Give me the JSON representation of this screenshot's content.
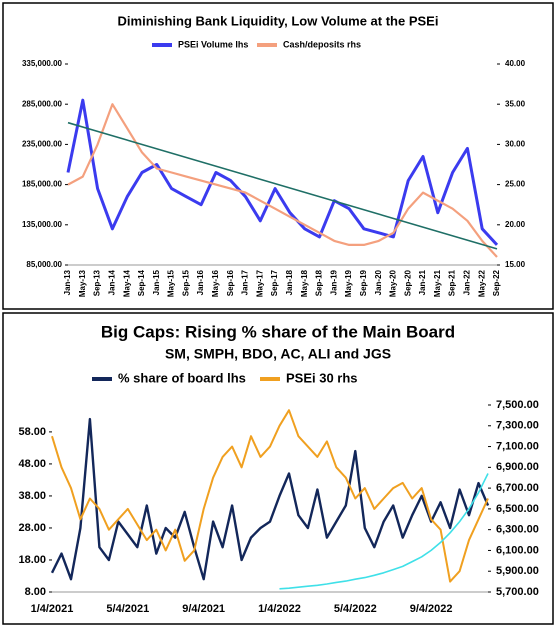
{
  "chart_data": [
    {
      "type": "line",
      "title": "Diminishing Bank Liquidity, Low Volume at the PSEi",
      "categories": [
        "Jan-13",
        "May-13",
        "Sep-13",
        "Jan-14",
        "May-14",
        "Sep-14",
        "Jan-15",
        "May-15",
        "Sep-15",
        "Jan-16",
        "May-16",
        "Sep-16",
        "Jan-17",
        "May-17",
        "Sep-17",
        "Jan-18",
        "May-18",
        "Sep-18",
        "Jan-19",
        "May-19",
        "Sep-19",
        "Jan-20",
        "May-20",
        "Sep-20",
        "Jan-21",
        "May-21",
        "Sep-21",
        "Jan-22",
        "May-22",
        "Sep-22"
      ],
      "series": [
        {
          "name": "PSEi Volume lhs",
          "color": "#3b3bef",
          "values": [
            200000,
            290000,
            180000,
            130000,
            170000,
            200000,
            210000,
            180000,
            170000,
            160000,
            200000,
            190000,
            170000,
            140000,
            180000,
            150000,
            130000,
            120000,
            165000,
            155000,
            130000,
            125000,
            120000,
            190000,
            220000,
            150000,
            200000,
            230000,
            130000,
            110000
          ]
        },
        {
          "name": "Cash/deposits rhs",
          "color": "#f4a07e",
          "axis": "y2",
          "values": [
            25,
            26,
            30,
            35,
            32,
            29,
            27,
            26.5,
            26,
            25.5,
            25,
            24.5,
            24,
            23,
            22,
            21,
            20,
            19,
            18,
            17.5,
            17.5,
            18,
            19,
            22,
            24,
            23,
            22,
            20.5,
            18,
            16
          ]
        }
      ],
      "trend": {
        "color": "#1f6f66",
        "values": [
          262000,
          105000
        ]
      },
      "ylim": [
        85000,
        335000
      ],
      "yticks": [
        {
          "value": 85000,
          "label": "85,000.00"
        },
        {
          "value": 135000,
          "label": "135,000.00"
        },
        {
          "value": 185000,
          "label": "185,000.00"
        },
        {
          "value": 235000,
          "label": "235,000.00"
        },
        {
          "value": 285000,
          "label": "285,000.00"
        },
        {
          "value": 335000,
          "label": "335,000.00"
        }
      ],
      "y2lim": [
        15,
        40
      ],
      "y2ticks": [
        {
          "value": 15,
          "label": "15.00"
        },
        {
          "value": 20,
          "label": "20.00"
        },
        {
          "value": 25,
          "label": "25.00"
        },
        {
          "value": 30,
          "label": "30.00"
        },
        {
          "value": 35,
          "label": "35.00"
        },
        {
          "value": 40,
          "label": "40.00"
        }
      ],
      "legend": "top"
    },
    {
      "type": "line",
      "title": "Big Caps: Rising % share of the Main Board",
      "subtitle": "SM, SMPH, BDO, AC, ALI and JGS",
      "categories": [
        "1/4/2021",
        null,
        null,
        null,
        null,
        null,
        null,
        null,
        "5/4/2021",
        null,
        null,
        null,
        null,
        null,
        null,
        null,
        "9/4/2021",
        null,
        null,
        null,
        null,
        null,
        null,
        null,
        "1/4/2022",
        null,
        null,
        null,
        null,
        null,
        null,
        null,
        "5/4/2022",
        null,
        null,
        null,
        null,
        null,
        null,
        null,
        "9/4/2022",
        null,
        null,
        null,
        null,
        null,
        null
      ],
      "series": [
        {
          "name": "% share of board lhs",
          "color": "#13275a",
          "values": [
            14,
            20,
            12,
            28,
            62,
            22,
            18,
            30,
            26,
            22,
            35,
            20,
            28,
            25,
            33,
            22,
            12,
            30,
            22,
            35,
            18,
            25,
            28,
            30,
            38,
            45,
            32,
            28,
            40,
            25,
            30,
            35,
            52,
            28,
            22,
            30,
            35,
            25,
            32,
            38,
            30,
            36,
            28,
            40,
            32,
            42,
            35
          ]
        },
        {
          "name": "PSEi 30 rhs",
          "color": "#f0a020",
          "axis": "y2",
          "values": [
            7200,
            6900,
            6700,
            6400,
            6600,
            6500,
            6300,
            6400,
            6500,
            6350,
            6200,
            6300,
            6100,
            6300,
            6000,
            6100,
            6500,
            6800,
            7000,
            7100,
            6900,
            7200,
            7000,
            7100,
            7300,
            7450,
            7200,
            7100,
            7000,
            7150,
            6900,
            6800,
            6600,
            6700,
            6500,
            6600,
            6700,
            6750,
            6600,
            6700,
            6400,
            6300,
            5800,
            5900,
            6200,
            6400,
            6600
          ]
        }
      ],
      "trend": {
        "color": "#3fe0e8",
        "values": [
          null,
          null,
          null,
          null,
          null,
          null,
          null,
          null,
          null,
          null,
          null,
          null,
          null,
          null,
          null,
          null,
          null,
          null,
          null,
          null,
          null,
          null,
          null,
          null,
          9,
          9.2,
          9.5,
          9.8,
          10.1,
          10.5,
          11,
          11.4,
          12,
          12.5,
          13.2,
          14,
          15,
          16,
          17.5,
          19,
          21,
          23.5,
          26.5,
          30,
          34,
          39,
          45
        ]
      },
      "ylim": [
        8,
        66.4
      ],
      "yticks": [
        {
          "value": 8,
          "label": "8.00"
        },
        {
          "value": 18,
          "label": "18.00"
        },
        {
          "value": 28,
          "label": "28.00"
        },
        {
          "value": 38,
          "label": "38.00"
        },
        {
          "value": 48,
          "label": "48.00"
        },
        {
          "value": 58,
          "label": "58.00"
        }
      ],
      "y2lim": [
        5700,
        7500
      ],
      "y2ticks": [
        {
          "value": 5700,
          "label": "5,700.00"
        },
        {
          "value": 5900,
          "label": "5,900.00"
        },
        {
          "value": 6100,
          "label": "6,100.00"
        },
        {
          "value": 6300,
          "label": "6,300.00"
        },
        {
          "value": 6500,
          "label": "6,500.00"
        },
        {
          "value": 6700,
          "label": "6,700.00"
        },
        {
          "value": 6900,
          "label": "6,900.00"
        },
        {
          "value": 7100,
          "label": "7,100.00"
        },
        {
          "value": 7300,
          "label": "7,300.00"
        },
        {
          "value": 7500,
          "label": "7,500.00"
        }
      ],
      "legend": "top"
    }
  ]
}
